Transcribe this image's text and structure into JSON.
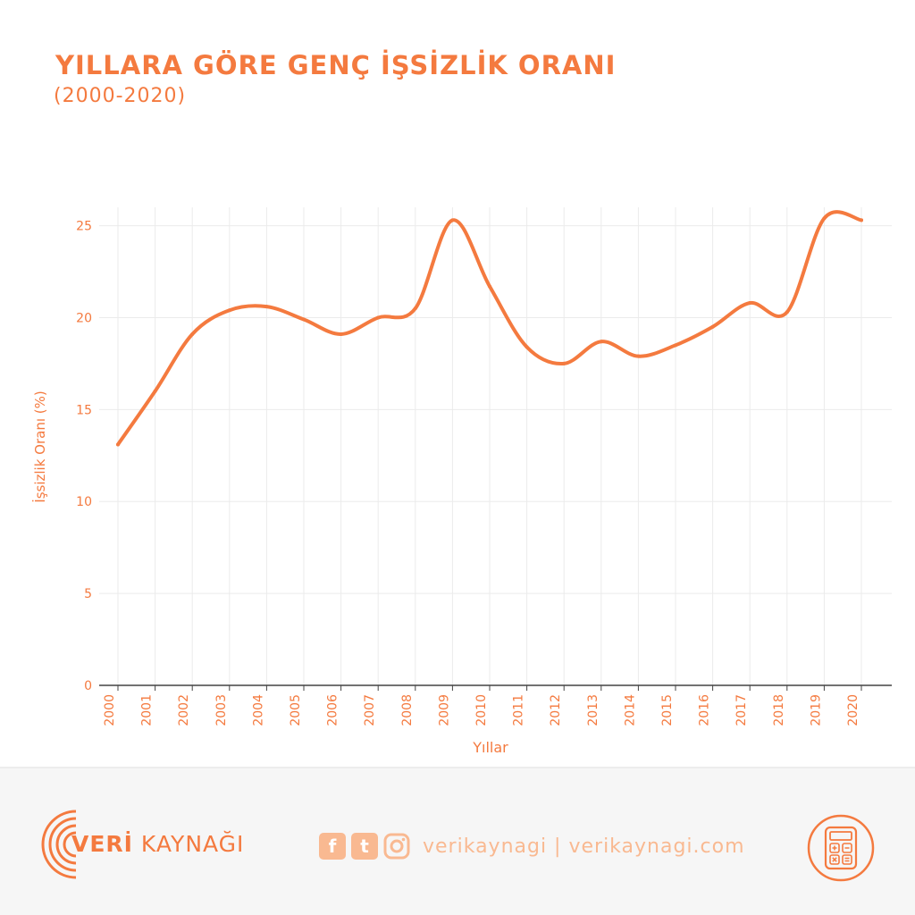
{
  "header": {
    "title": "YILLARA GÖRE GENÇ İŞSİZLİK ORANI",
    "subtitle": "(2000-2020)"
  },
  "colors": {
    "accent": "#f47a3f",
    "light_accent": "#f9b991",
    "grid": "#ebebeb"
  },
  "chart_data": {
    "type": "line",
    "title": "YILLARA GÖRE GENÇ İŞSİZLİK ORANI",
    "subtitle": "(2000-2020)",
    "xlabel": "Yıllar",
    "ylabel": "İşsizlik Oranı (%)",
    "x": [
      "2000",
      "2001",
      "2002",
      "2003",
      "2004",
      "2005",
      "2006",
      "2007",
      "2008",
      "2009",
      "2010",
      "2011",
      "2012",
      "2013",
      "2014",
      "2015",
      "2016",
      "2017",
      "2018",
      "2019",
      "2020"
    ],
    "values": [
      13.1,
      16.0,
      19.1,
      20.4,
      20.6,
      19.9,
      19.1,
      20.0,
      20.5,
      25.3,
      21.7,
      18.4,
      17.5,
      18.7,
      17.9,
      18.5,
      19.5,
      20.8,
      20.3,
      25.4,
      25.3
    ],
    "yticks": [
      0,
      5,
      10,
      15,
      20,
      25
    ],
    "ylim": [
      0,
      26
    ],
    "grid": true,
    "legend": "none"
  },
  "footer": {
    "brand_bold": "VERİ",
    "brand_rest": " KAYNAĞI",
    "facebook_icon_glyph": "f",
    "twitter_icon_glyph": "t",
    "handle": "verikaynagi | verikaynagi.com",
    "icons": [
      "brand-arc-icon",
      "facebook-icon",
      "twitter-icon",
      "instagram-icon",
      "calculator-icon"
    ]
  }
}
